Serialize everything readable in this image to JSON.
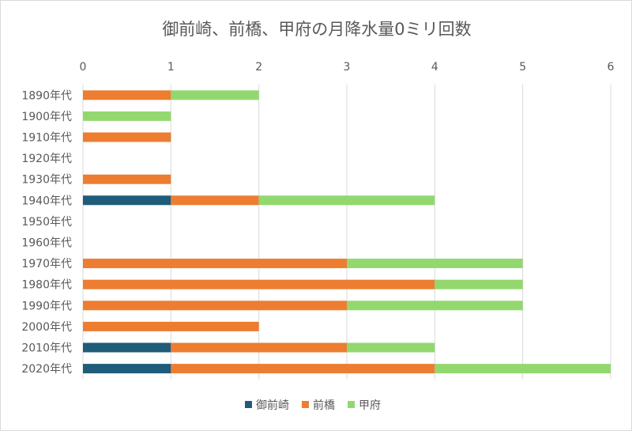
{
  "chart_data": {
    "type": "bar",
    "orientation": "horizontal",
    "stacked": true,
    "title": "御前崎、前橋、甲府の月降水量0ミリ回数",
    "categories": [
      "1890年代",
      "1900年代",
      "1910年代",
      "1920年代",
      "1930年代",
      "1940年代",
      "1950年代",
      "1960年代",
      "1970年代",
      "1980年代",
      "1990年代",
      "2000年代",
      "2010年代",
      "2020年代"
    ],
    "series": [
      {
        "name": "御前崎",
        "color": "#1f5c7a",
        "values": [
          0,
          0,
          0,
          0,
          0,
          1,
          0,
          0,
          0,
          0,
          0,
          0,
          1,
          1
        ]
      },
      {
        "name": "前橋",
        "color": "#ed7d31",
        "values": [
          1,
          0,
          1,
          0,
          1,
          1,
          0,
          0,
          3,
          4,
          3,
          2,
          2,
          3
        ]
      },
      {
        "name": "甲府",
        "color": "#92d86f",
        "values": [
          1,
          1,
          0,
          0,
          0,
          2,
          0,
          0,
          2,
          1,
          2,
          0,
          1,
          2
        ]
      }
    ],
    "xlim": [
      0,
      6
    ],
    "xticks": [
      "0",
      "1",
      "2",
      "3",
      "4",
      "5",
      "6"
    ],
    "x_axis_position": "top",
    "grid": true,
    "legend_position": "bottom"
  }
}
